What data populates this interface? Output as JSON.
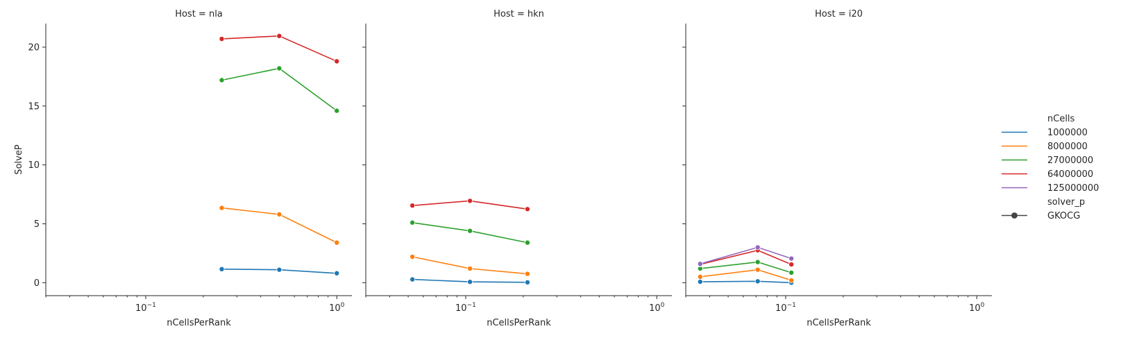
{
  "chart_data": {
    "type": "line",
    "panel_title_prefix": "Host = ",
    "ylabel": "SolveP",
    "xlabel": "nCellsPerRank",
    "xscale": "log",
    "xlim": [
      0.03,
      1.2
    ],
    "ylim": [
      -1.1,
      22
    ],
    "yticks": [
      0,
      5,
      10,
      15,
      20
    ],
    "xticks": [
      {
        "value": 0.1,
        "base": "10",
        "exp": "−1"
      },
      {
        "value": 1,
        "base": "10",
        "exp": "0"
      }
    ],
    "grid": false,
    "legend_position": "right",
    "legend": {
      "hue_title": "nCells",
      "style_title": "solver_p",
      "style_entries": [
        "GKOCG"
      ]
    },
    "series_colors": {
      "1000000": "#1f77b4",
      "8000000": "#ff7f0e",
      "27000000": "#2ca02c",
      "64000000": "#d62728",
      "125000000": "#9467bd"
    },
    "series_order": [
      "1000000",
      "8000000",
      "27000000",
      "64000000",
      "125000000"
    ],
    "panels": [
      {
        "host": "nla",
        "series": [
          {
            "name": "1000000",
            "x": [
              0.25,
              0.5,
              1.0
            ],
            "y": [
              1.15,
              1.1,
              0.8
            ]
          },
          {
            "name": "8000000",
            "x": [
              0.25,
              0.5,
              1.0
            ],
            "y": [
              6.35,
              5.8,
              3.4
            ]
          },
          {
            "name": "27000000",
            "x": [
              0.25,
              0.5,
              1.0
            ],
            "y": [
              17.2,
              18.2,
              14.6
            ]
          },
          {
            "name": "64000000",
            "x": [
              0.25,
              0.5,
              1.0
            ],
            "y": [
              20.7,
              20.95,
              18.8
            ]
          }
        ]
      },
      {
        "host": "hkn",
        "series": [
          {
            "name": "1000000",
            "x": [
              0.0526,
              0.1053,
              0.2105
            ],
            "y": [
              0.28,
              0.07,
              0.03
            ]
          },
          {
            "name": "8000000",
            "x": [
              0.0526,
              0.1053,
              0.2105
            ],
            "y": [
              2.2,
              1.2,
              0.75
            ]
          },
          {
            "name": "27000000",
            "x": [
              0.0526,
              0.1053,
              0.2105
            ],
            "y": [
              5.1,
              4.4,
              3.4
            ]
          },
          {
            "name": "64000000",
            "x": [
              0.0526,
              0.1053,
              0.2105
            ],
            "y": [
              6.55,
              6.95,
              6.25
            ]
          }
        ]
      },
      {
        "host": "i20",
        "series": [
          {
            "name": "1000000",
            "x": [
              0.0357,
              0.0714,
              0.1071
            ],
            "y": [
              0.08,
              0.12,
              0.0
            ]
          },
          {
            "name": "8000000",
            "x": [
              0.0357,
              0.0714,
              0.1071
            ],
            "y": [
              0.5,
              1.1,
              0.2
            ]
          },
          {
            "name": "27000000",
            "x": [
              0.0357,
              0.0714,
              0.1071
            ],
            "y": [
              1.2,
              1.75,
              0.85
            ]
          },
          {
            "name": "64000000",
            "x": [
              0.0357,
              0.0714,
              0.1071
            ],
            "y": [
              1.55,
              2.75,
              1.55
            ]
          },
          {
            "name": "125000000",
            "x": [
              0.0357,
              0.0714,
              0.1071
            ],
            "y": [
              1.6,
              3.0,
              2.05
            ]
          }
        ]
      }
    ]
  }
}
